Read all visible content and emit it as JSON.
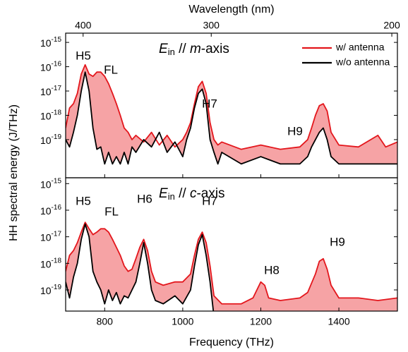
{
  "chart_data": [
    {
      "type": "line",
      "x2label": "Wavelength (nm)",
      "x2scale": "log",
      "x2lim": [
        416,
        197.5
      ],
      "x2ticks": [
        400,
        300,
        200
      ],
      "ylabel": "HH spectral energy (J/THz)",
      "panel_label": "Ein // m-axis",
      "legend": "upper right",
      "yscale": "log",
      "xlim": [
        700,
        1550
      ],
      "xticks": [
        800,
        1000,
        1200,
        1400
      ],
      "ylim": [
        2.7e-21,
        2.4e-15
      ],
      "yticks": [
        {
          "value": 1e-15,
          "label": "10-15"
        },
        {
          "value": 1e-16,
          "label": "10-16"
        },
        {
          "value": 1e-17,
          "label": "10-17"
        },
        {
          "value": 1e-18,
          "label": "10-18"
        },
        {
          "value": 1e-19,
          "label": "10-19"
        }
      ],
      "annotations": [
        "H5",
        "FL",
        "H7",
        "H9"
      ],
      "x": [
        700,
        710,
        720,
        730,
        740,
        750,
        760,
        770,
        780,
        790,
        800,
        810,
        820,
        830,
        840,
        850,
        860,
        870,
        880,
        900,
        920,
        940,
        960,
        980,
        1000,
        1010,
        1020,
        1030,
        1040,
        1050,
        1060,
        1070,
        1080,
        1090,
        1100,
        1150,
        1200,
        1250,
        1300,
        1320,
        1330,
        1340,
        1350,
        1360,
        1370,
        1380,
        1400,
        1450,
        1500,
        1520,
        1550
      ],
      "series": [
        {
          "name": "w/ antenna",
          "color": "#e3161c",
          "fill": "#f6a3a5",
          "values": [
            3e-19,
            2e-18,
            3e-18,
            8e-18,
            5e-17,
            1.2e-16,
            5e-17,
            4e-17,
            6e-17,
            6e-17,
            4e-17,
            2e-17,
            8e-18,
            3e-18,
            1e-18,
            3e-19,
            2e-19,
            1e-19,
            1.5e-19,
            8e-20,
            2e-19,
            6e-20,
            1.5e-19,
            5e-20,
            1e-19,
            2e-19,
            5e-19,
            3e-18,
            1.5e-17,
            2.5e-17,
            8e-18,
            5e-19,
            1e-19,
            6e-20,
            8e-20,
            4e-20,
            6e-20,
            4e-20,
            5e-20,
            1e-19,
            3e-19,
            1e-18,
            2.5e-18,
            3e-18,
            1.5e-18,
            2e-19,
            6e-20,
            5e-20,
            1.5e-19,
            5e-20,
            8e-20
          ]
        },
        {
          "name": "w/o antenna",
          "color": "#000000",
          "fill": "#ffffff",
          "values": [
            1e-19,
            5e-20,
            2e-19,
            1e-18,
            1e-17,
            6e-17,
            1e-17,
            3e-19,
            4e-20,
            5e-20,
            1e-20,
            3e-20,
            1e-20,
            2e-20,
            1e-20,
            3e-20,
            1e-20,
            5e-20,
            3e-20,
            1e-19,
            5e-20,
            2e-19,
            3e-20,
            8e-20,
            2e-20,
            1e-19,
            3e-19,
            2e-18,
            8e-18,
            1.2e-17,
            3e-18,
            1e-19,
            3e-20,
            1e-20,
            3e-20,
            1e-20,
            2e-20,
            1e-20,
            1e-20,
            2e-20,
            5e-20,
            1e-19,
            2e-19,
            3e-19,
            1e-19,
            2e-20,
            1e-20,
            1e-20,
            1e-20,
            1e-20,
            1e-20
          ]
        }
      ]
    },
    {
      "type": "line",
      "xlabel": "Frequency (THz)",
      "panel_label": "Ein // c-axis",
      "yscale": "log",
      "xlim": [
        700,
        1550
      ],
      "xticks": [
        800,
        1000,
        1200,
        1400
      ],
      "ylim": [
        1.6e-20,
        1.66e-15
      ],
      "yticks": [
        {
          "value": 1e-15,
          "label": "10-15"
        },
        {
          "value": 1e-16,
          "label": "10-16"
        },
        {
          "value": 1e-17,
          "label": "10-17"
        },
        {
          "value": 1e-18,
          "label": "10-18"
        },
        {
          "value": 1e-19,
          "label": "10-19"
        }
      ],
      "annotations": [
        "H5",
        "FL",
        "H6",
        "H7",
        "H8",
        "H9"
      ],
      "x": [
        700,
        710,
        720,
        730,
        740,
        750,
        760,
        770,
        780,
        790,
        800,
        810,
        820,
        830,
        840,
        850,
        860,
        870,
        880,
        890,
        900,
        910,
        920,
        930,
        950,
        980,
        1000,
        1020,
        1030,
        1040,
        1050,
        1060,
        1070,
        1080,
        1100,
        1150,
        1180,
        1190,
        1200,
        1210,
        1220,
        1250,
        1300,
        1320,
        1340,
        1350,
        1360,
        1370,
        1380,
        1400,
        1450,
        1500,
        1550
      ],
      "series": [
        {
          "name": "w/ antenna",
          "color": "#e3161c",
          "fill": "#f6a3a5",
          "values": [
            5e-19,
            2e-18,
            3e-18,
            6e-18,
            1.5e-17,
            3.5e-17,
            2e-17,
            1.2e-17,
            1.5e-17,
            2e-17,
            2e-17,
            1.5e-17,
            8e-18,
            4e-18,
            2e-18,
            8e-19,
            5e-19,
            6e-19,
            1.5e-18,
            4e-18,
            8e-18,
            3e-18,
            5e-19,
            2e-19,
            1.5e-19,
            2e-19,
            2e-19,
            4e-19,
            2e-18,
            8e-18,
            1.5e-17,
            6e-18,
            8e-19,
            6e-20,
            3e-20,
            3e-20,
            5e-20,
            1e-19,
            2e-19,
            1.5e-19,
            5e-20,
            4e-20,
            5e-20,
            8e-20,
            4e-19,
            1.2e-18,
            1.5e-18,
            6e-19,
            1.5e-19,
            5e-20,
            5e-20,
            4e-20,
            5e-20
          ]
        },
        {
          "name": "w/o antenna",
          "color": "#000000",
          "fill": "#ffffff",
          "values": [
            2e-19,
            5e-20,
            3e-19,
            1e-18,
            8e-18,
            3e-17,
            1e-17,
            5e-19,
            2e-19,
            1e-19,
            3e-20,
            1e-19,
            4e-20,
            8e-20,
            3e-20,
            6e-20,
            5e-20,
            1e-19,
            2e-19,
            1e-18,
            6e-18,
            1e-18,
            1e-19,
            4e-20,
            3e-20,
            6e-20,
            3e-20,
            1e-19,
            8e-19,
            5e-18,
            1.2e-17,
            2e-18,
            2e-19,
            1e-20,
            1e-20,
            1e-20,
            1e-20,
            1e-20,
            1e-20,
            1e-20,
            1e-20,
            1e-20,
            1e-20,
            1e-20,
            1e-20,
            1e-20,
            1e-20,
            1e-20,
            1e-20,
            1e-20,
            1e-20,
            1e-20,
            1e-20
          ]
        }
      ]
    }
  ]
}
